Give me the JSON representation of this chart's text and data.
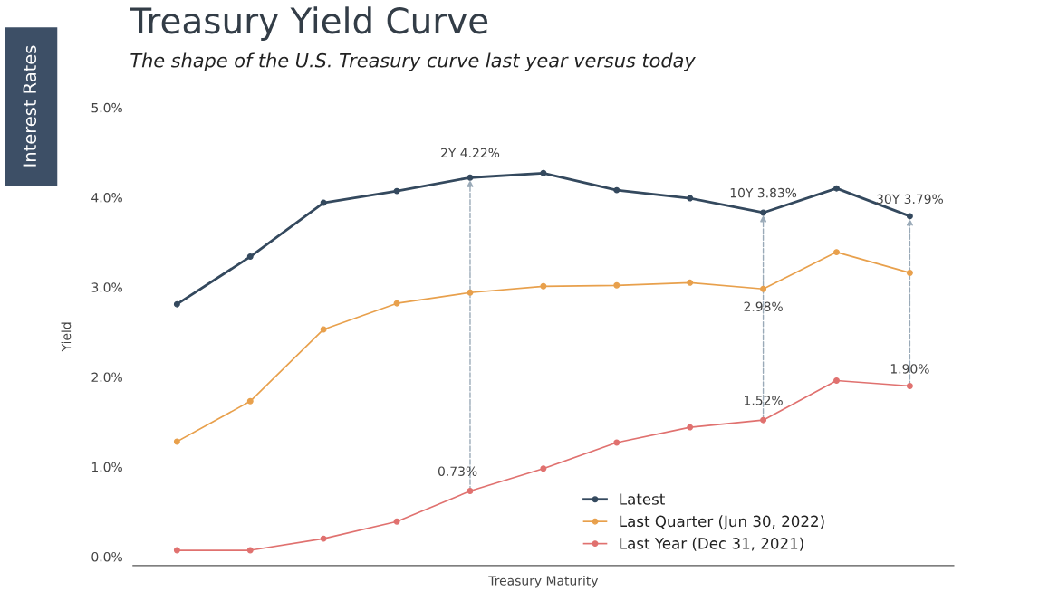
{
  "chart_data": {
    "type": "line",
    "title": "Treasury Yield Curve",
    "subtitle": "The shape of the U.S. Treasury curve last year versus today",
    "xlabel": "Treasury Maturity",
    "ylabel": "Yield",
    "categories": [
      null,
      null,
      null,
      null,
      null,
      null,
      null,
      null,
      null,
      null,
      null
    ],
    "ylim": [
      -0.1,
      5.0
    ],
    "yticks": [
      {
        "value": 0,
        "label": "0.0%"
      },
      {
        "value": 1,
        "label": "1.0%"
      },
      {
        "value": 2,
        "label": "2.0%"
      },
      {
        "value": 3,
        "label": "3.0%"
      },
      {
        "value": 4,
        "label": "4.0%"
      },
      {
        "value": 5,
        "label": "5.0%"
      }
    ],
    "tick_labels": "y",
    "legend": "bottom right",
    "marker": "circle",
    "line_style": "solid",
    "series": [
      {
        "name": "Latest",
        "color": "#34495e",
        "values": [
          2.81,
          3.34,
          3.94,
          4.07,
          4.22,
          4.27,
          4.08,
          3.99,
          3.83,
          4.1,
          3.79
        ]
      },
      {
        "name": "Last Quarter (Jun 30, 2022)",
        "color": "#e8a04c",
        "values": [
          1.28,
          1.73,
          2.53,
          2.82,
          2.94,
          3.01,
          3.02,
          3.05,
          2.98,
          3.39,
          3.16
        ]
      },
      {
        "name": "Last Year (Dec 31, 2021)",
        "color": "#e0716f",
        "values": [
          0.07,
          0.07,
          0.2,
          0.39,
          0.73,
          0.98,
          1.27,
          1.44,
          1.52,
          1.96,
          1.9
        ]
      }
    ],
    "annotations": [
      {
        "text": "2Y 4.22%",
        "y": 4.22
      },
      {
        "text": "10Y 3.83%",
        "y": 3.83
      },
      {
        "text": "30Y 3.79%",
        "y": 3.79
      },
      {
        "text": "2.98%",
        "y": 2.98
      },
      {
        "text": "0.73%",
        "y": 0.73
      },
      {
        "text": "1.52%",
        "y": 1.52
      },
      {
        "text": "1.90%",
        "y": 1.9
      },
      "Interest Rates"
    ]
  }
}
